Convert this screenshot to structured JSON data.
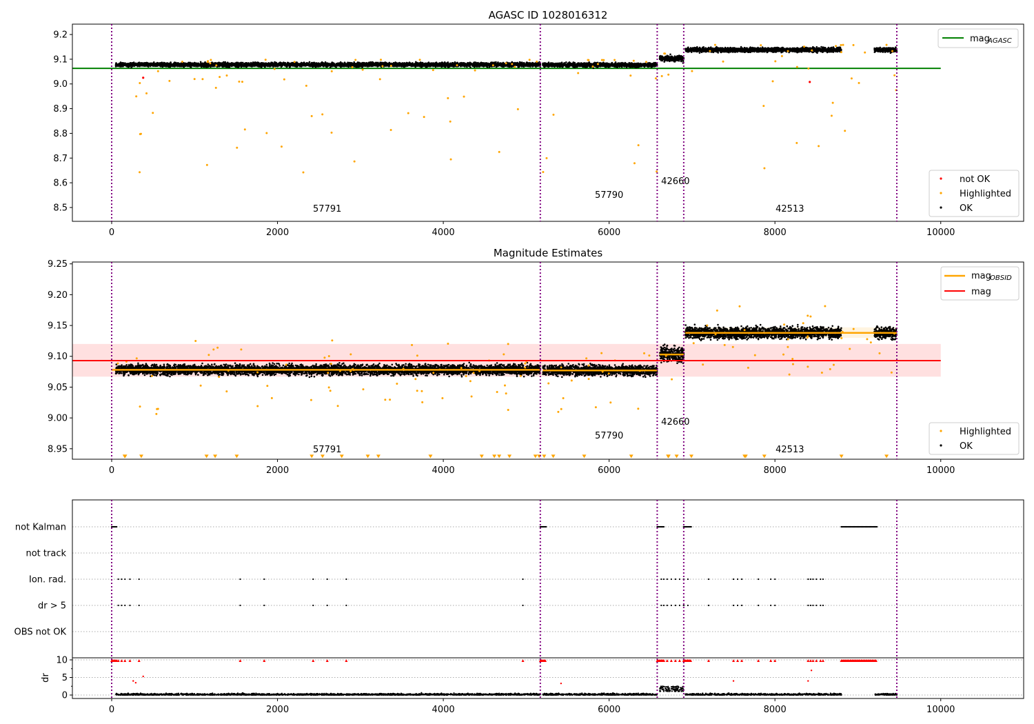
{
  "chart_data": [
    {
      "type": "scatter",
      "title": "AGASC ID 1028016312",
      "xlim": [
        -474,
        11000
      ],
      "ylim": [
        8.444,
        9.242
      ],
      "xticks": [
        0,
        2000,
        4000,
        6000,
        8000,
        10000
      ],
      "yticks": [
        8.5,
        8.6,
        8.7,
        8.8,
        8.9,
        9.0,
        9.1,
        9.2
      ],
      "mag_agasc": 9.063,
      "mag_agasc_xrange": [
        -474,
        10000
      ],
      "legend_top": {
        "line": "mag",
        "sub": "AGASC"
      },
      "legend_bottom": [
        "not OK",
        "Highlighted",
        "OK"
      ],
      "colors": {
        "ok": "#000000",
        "highlighted": "#ffa500",
        "not_ok": "#ff0000",
        "agasc": "#008000",
        "obs_line": "#800080"
      }
    },
    {
      "type": "scatter",
      "title": "Magnitude Estimates",
      "xlim": [
        -474,
        11000
      ],
      "ylim": [
        8.933,
        9.253
      ],
      "yticks": [
        8.95,
        9.0,
        9.05,
        9.1,
        9.15,
        9.2,
        9.25
      ],
      "mag": 9.093,
      "mag_band": [
        9.067,
        9.12
      ],
      "legend_top": [
        {
          "line": "mag",
          "sub": "OBSID"
        },
        {
          "line": "mag"
        }
      ],
      "legend_bottom": [
        "Highlighted",
        "OK"
      ]
    },
    {
      "type": "scatter",
      "title": "",
      "flag_labels": [
        "not Kalman",
        "not track",
        "Ion. rad.",
        "dr > 5",
        "OBS not OK"
      ],
      "ylabel": "dr",
      "dr_yticks": [
        0,
        5,
        10
      ],
      "dr_ylim": [
        -1,
        10.6
      ],
      "not_kalman_ranges": [
        [
          0,
          60
        ],
        [
          5170,
          5240
        ],
        [
          6580,
          6660
        ],
        [
          6900,
          6990
        ],
        [
          8800,
          9230
        ]
      ],
      "flag_times": [
        80,
        120,
        160,
        220,
        330,
        1550,
        1840,
        2430,
        2600,
        2830,
        4960,
        6630,
        6660,
        6700,
        6750,
        6800,
        6850,
        6900,
        6950,
        7200,
        7500,
        7550,
        7600,
        7800,
        7950,
        8000,
        8400,
        8430,
        8460,
        8500,
        8550,
        8580
      ]
    }
  ],
  "obs_boundaries": [
    0,
    5170,
    6580,
    6900,
    9470
  ],
  "observations": [
    {
      "obsid": "57791",
      "start": 50,
      "end": 5170,
      "mag": 9.078,
      "spread": 0.008,
      "label_x": 2600
    },
    {
      "obsid": "57790",
      "start": 5200,
      "end": 6580,
      "mag": 9.077,
      "spread": 0.008,
      "label_x": 6000
    },
    {
      "obsid": "42660",
      "start": 6610,
      "end": 6900,
      "mag": 9.103,
      "spread": 0.012,
      "label_x": 6800
    },
    {
      "obsid": "42513",
      "start": 6920,
      "end": 9470,
      "mag": 9.138,
      "spread": 0.009,
      "label_x": 8180,
      "gap": [
        8800,
        9200
      ]
    }
  ]
}
